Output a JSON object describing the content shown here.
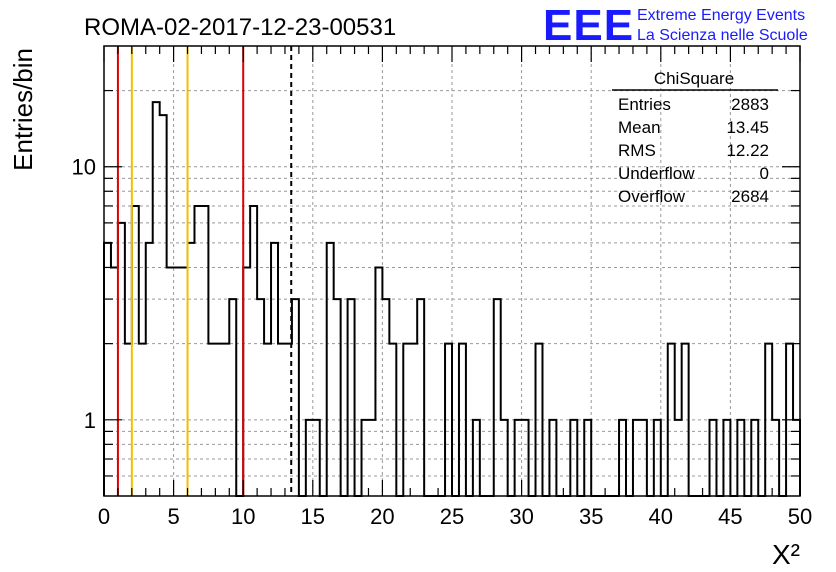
{
  "title": "ROMA-02-2017-12-23-00531",
  "logo": {
    "mark": "EEE",
    "line1": "Extreme Energy Events",
    "line2": "La Scienza nelle Scuole",
    "color": "#1a1aff"
  },
  "stats": {
    "name": "ChiSquare",
    "rows": [
      {
        "label": "Entries",
        "value": "2883"
      },
      {
        "label": "Mean",
        "value": "13.45"
      },
      {
        "label": "RMS",
        "value": "12.22"
      },
      {
        "label": "Underflow",
        "value": "0"
      },
      {
        "label": "Overflow",
        "value": "2684"
      }
    ]
  },
  "chart_data": {
    "type": "bar",
    "histogram": true,
    "xlabel": "X²",
    "ylabel": "Entries/bin",
    "xlim": [
      0,
      50
    ],
    "ylim": [
      0.5,
      30
    ],
    "yscale": "log",
    "grid": true,
    "bin_width": 0.5,
    "x_ticks": [
      "0",
      "5",
      "10",
      "15",
      "20",
      "25",
      "30",
      "35",
      "40",
      "45",
      "50"
    ],
    "y_ticks": [
      "1",
      "10"
    ],
    "values": [
      5,
      4,
      6,
      2,
      7,
      2,
      5,
      18,
      16,
      4,
      4,
      4,
      5,
      7,
      7,
      2,
      2,
      2,
      3,
      0,
      4,
      7,
      3,
      2,
      5,
      2,
      2,
      3,
      0,
      1,
      1,
      0,
      5,
      3,
      0,
      3,
      0,
      1,
      1,
      4,
      3,
      2,
      0,
      2,
      2,
      3,
      0,
      0,
      0,
      2,
      0,
      2,
      0,
      1,
      0,
      0,
      3,
      1,
      0,
      1,
      1,
      0,
      2,
      0,
      1,
      0,
      0,
      1,
      0,
      1,
      0,
      0,
      0,
      0,
      1,
      0,
      1,
      1,
      0,
      1,
      0,
      2,
      1,
      2,
      0,
      0,
      0,
      1,
      0,
      1,
      0,
      1,
      0,
      1,
      0,
      2,
      1,
      0,
      2,
      1
    ],
    "vertical_lines": [
      {
        "x": 1,
        "color": "#e00000",
        "style": "solid"
      },
      {
        "x": 2,
        "color": "#f0c000",
        "style": "solid"
      },
      {
        "x": 6,
        "color": "#f0c000",
        "style": "solid"
      },
      {
        "x": 10,
        "color": "#e00000",
        "style": "solid"
      },
      {
        "x": 13.45,
        "color": "#000000",
        "style": "dashed"
      }
    ]
  }
}
